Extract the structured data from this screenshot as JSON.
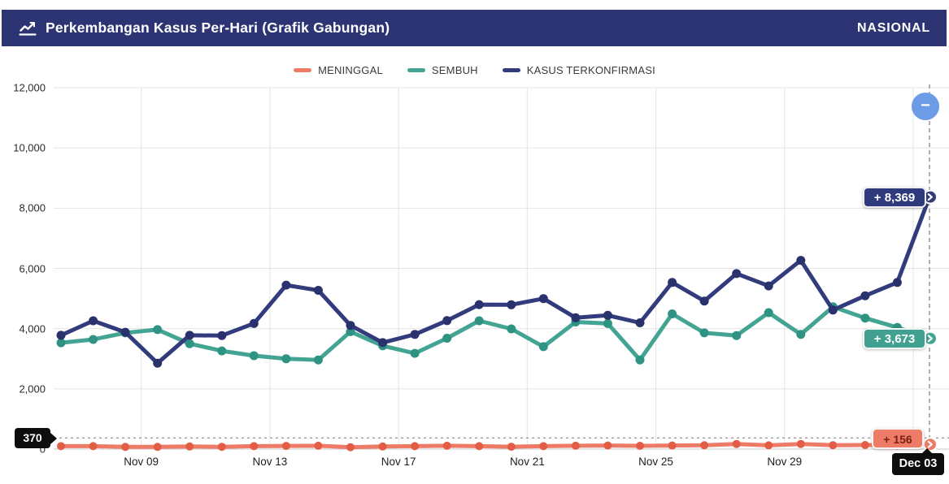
{
  "header": {
    "title": "Perkembangan Kasus Per-Hari (Grafik Gabungan)",
    "region_label": "NASIONAL"
  },
  "controls": {
    "collapse_label": "−"
  },
  "chart_data": {
    "type": "line",
    "title": "Perkembangan Kasus Per-Hari (Grafik Gabungan)",
    "x": [
      "Nov 06",
      "Nov 07",
      "Nov 08",
      "Nov 09",
      "Nov 10",
      "Nov 11",
      "Nov 12",
      "Nov 13",
      "Nov 14",
      "Nov 15",
      "Nov 16",
      "Nov 17",
      "Nov 18",
      "Nov 19",
      "Nov 20",
      "Nov 21",
      "Nov 22",
      "Nov 23",
      "Nov 24",
      "Nov 25",
      "Nov 26",
      "Nov 27",
      "Nov 28",
      "Nov 29",
      "Nov 30",
      "Dec 01",
      "Dec 02",
      "Dec 03"
    ],
    "series": [
      {
        "name": "MENINGGAL",
        "color": "#ee7b66",
        "dot_color": "#e25c46",
        "values": [
          98,
          98,
          74,
          73,
          85,
          75,
          97,
          104,
          111,
          63,
          85,
          97,
          110,
          97,
          78,
          96,
          110,
          118,
          109,
          118,
          126,
          169,
          125,
          169,
          130,
          136,
          118,
          156
        ]
      },
      {
        "name": "SEMBUH",
        "color": "#44a493",
        "dot_color": "#2f9383",
        "values": [
          3530,
          3640,
          3860,
          3967,
          3500,
          3260,
          3100,
          3000,
          2960,
          3900,
          3430,
          3180,
          3680,
          4260,
          3990,
          3400,
          4220,
          4170,
          2960,
          4490,
          3860,
          3770,
          4530,
          3810,
          4725,
          4350,
          4040,
          3673
        ]
      },
      {
        "name": "KASUS TERKONFIRMASI",
        "color": "#323b7c",
        "dot_color": "#2a326e",
        "values": [
          3778,
          4262,
          3880,
          2853,
          3779,
          3770,
          4173,
          5444,
          5272,
          4106,
          3535,
          3807,
          4265,
          4798,
          4792,
          4998,
          4360,
          4442,
          4192,
          5534,
          4917,
          5828,
          5418,
          6267,
          4617,
          5092,
          5533,
          8369
        ]
      }
    ],
    "ylim": [
      0,
      12000
    ],
    "y_ticks": [
      {
        "value": 12000,
        "label": "12,000"
      },
      {
        "value": 10000,
        "label": "10,000"
      },
      {
        "value": 8000,
        "label": "8,000"
      },
      {
        "value": 6000,
        "label": "6,000"
      },
      {
        "value": 4000,
        "label": "4,000"
      },
      {
        "value": 2000,
        "label": "2,000"
      },
      {
        "value": 0,
        "label": "0"
      }
    ],
    "x_ticks": [
      {
        "index": 3,
        "label": "Nov 09"
      },
      {
        "index": 7,
        "label": "Nov 13"
      },
      {
        "index": 11,
        "label": "Nov 17"
      },
      {
        "index": 15,
        "label": "Nov 21"
      },
      {
        "index": 19,
        "label": "Nov 25"
      },
      {
        "index": 23,
        "label": "Nov 29"
      },
      {
        "index": 27,
        "label": "Dec 03",
        "badge": true
      }
    ],
    "grid": true,
    "legend_position": "top-center",
    "reference_line": {
      "value": 370,
      "label": "370"
    },
    "marker": {
      "x_label": "Dec 03",
      "end_labels": {
        "deaths": "+ 156",
        "recovered": "+ 3,673",
        "confirmed": "+ 8,369"
      }
    }
  }
}
